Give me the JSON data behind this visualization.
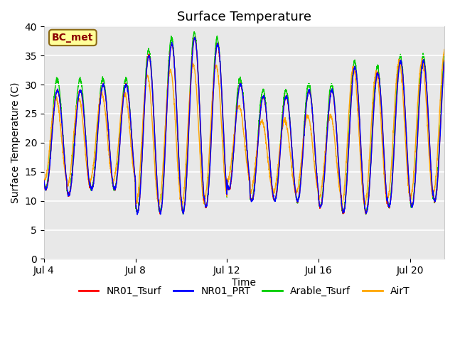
{
  "title": "Surface Temperature",
  "xlabel": "Time",
  "ylabel": "Surface Temperature (C)",
  "ylim": [
    0,
    40
  ],
  "yticks": [
    0,
    5,
    10,
    15,
    20,
    25,
    30,
    35,
    40
  ],
  "xtick_labels": [
    "Jul 4",
    "Jul 8",
    "Jul 12",
    "Jul 16",
    "Jul 20"
  ],
  "annotation_text": "BC_met",
  "colors": {
    "NR01_Tsurf": "#ff0000",
    "NR01_PRT": "#0000ff",
    "Arable_Tsurf": "#00cc00",
    "AirT": "#ffa500"
  },
  "legend_labels": [
    "NR01_Tsurf",
    "NR01_PRT",
    "Arable_Tsurf",
    "AirT"
  ],
  "bg_color": "#e8e8e8",
  "title_fontsize": 13,
  "axis_label_fontsize": 10,
  "tick_fontsize": 10,
  "legend_fontsize": 10,
  "n_days": 17.5,
  "samples_per_day": 144,
  "day_peaks": [
    29,
    29,
    30,
    30,
    35,
    37,
    38,
    37,
    30,
    28,
    28,
    29,
    29,
    33,
    32,
    34,
    34,
    36
  ],
  "day_troughs": [
    12,
    11,
    12,
    12,
    8,
    8,
    8,
    9,
    12,
    10,
    10,
    10,
    9,
    8,
    8,
    9,
    9,
    10
  ],
  "arable_extra_peak": [
    2,
    2,
    1,
    1,
    1,
    1,
    1,
    1,
    1,
    1,
    1,
    1,
    1,
    1,
    1,
    1,
    1,
    1
  ],
  "airt_peak_factor": [
    0.95,
    0.95,
    0.95,
    0.95,
    0.9,
    0.88,
    0.88,
    0.9,
    0.88,
    0.85,
    0.85,
    0.85,
    0.85,
    1.0,
    1.0,
    1.0,
    1.0,
    1.0
  ],
  "airt_lag": 0.06,
  "peak_hour": 14.0,
  "trough_hour": 4.0
}
